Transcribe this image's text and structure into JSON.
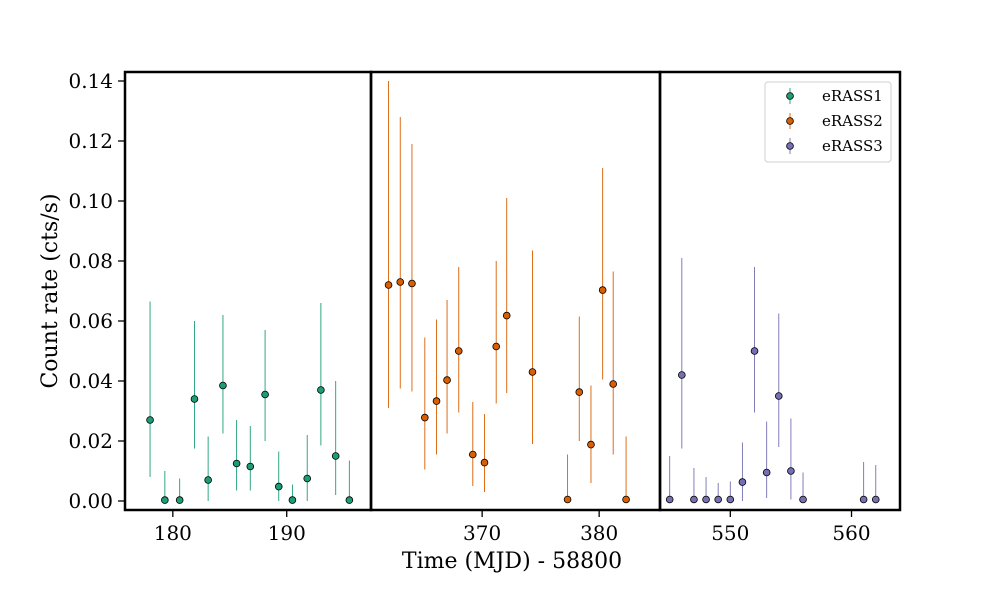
{
  "chart_data": {
    "type": "scatter",
    "xlabel": "Time (MJD) - 58800",
    "ylabel": "Count rate (cts/s)",
    "ylim": [
      -0.003,
      0.143
    ],
    "y_ticks": [
      0.0,
      0.02,
      0.04,
      0.06,
      0.08,
      0.1,
      0.12,
      0.14
    ],
    "y_tick_labels": [
      "0.00",
      "0.02",
      "0.04",
      "0.06",
      "0.08",
      "0.10",
      "0.12",
      "0.14"
    ],
    "legend_position": "top-right",
    "grid": false,
    "panels": [
      {
        "xlim": [
          175.8,
          197.4
        ],
        "x_ticks": [
          180,
          190
        ],
        "x_tick_labels": [
          "180",
          "190"
        ]
      },
      {
        "xlim": [
          360.5,
          385.2
        ],
        "x_ticks": [
          370,
          380
        ],
        "x_tick_labels": [
          "370",
          "380"
        ]
      },
      {
        "xlim": [
          544.2,
          564.0
        ],
        "x_ticks": [
          550,
          560
        ],
        "x_tick_labels": [
          "550",
          "560"
        ]
      }
    ],
    "series": [
      {
        "name": "eRASS1",
        "panel": 0,
        "color": "#1b9e77",
        "points": [
          {
            "x": 178.0,
            "y": 0.027,
            "lo": 0.008,
            "hi": 0.0665
          },
          {
            "x": 179.3,
            "y": 0.0003,
            "lo": 0.0,
            "hi": 0.01
          },
          {
            "x": 180.6,
            "y": 0.0003,
            "lo": 0.0,
            "hi": 0.0075
          },
          {
            "x": 181.9,
            "y": 0.034,
            "lo": 0.0175,
            "hi": 0.06
          },
          {
            "x": 183.1,
            "y": 0.007,
            "lo": 0.0,
            "hi": 0.0215
          },
          {
            "x": 184.4,
            "y": 0.0385,
            "lo": 0.0225,
            "hi": 0.062
          },
          {
            "x": 185.6,
            "y": 0.0125,
            "lo": 0.0035,
            "hi": 0.027
          },
          {
            "x": 186.8,
            "y": 0.0115,
            "lo": 0.0035,
            "hi": 0.025
          },
          {
            "x": 188.1,
            "y": 0.0355,
            "lo": 0.02,
            "hi": 0.057
          },
          {
            "x": 189.3,
            "y": 0.0048,
            "lo": 0.0,
            "hi": 0.0165
          },
          {
            "x": 190.5,
            "y": 0.0003,
            "lo": 0.0,
            "hi": 0.0055
          },
          {
            "x": 191.8,
            "y": 0.0075,
            "lo": 0.0,
            "hi": 0.022
          },
          {
            "x": 193.0,
            "y": 0.037,
            "lo": 0.0185,
            "hi": 0.066
          },
          {
            "x": 194.3,
            "y": 0.015,
            "lo": 0.002,
            "hi": 0.04
          },
          {
            "x": 195.5,
            "y": 0.0003,
            "lo": 0.0,
            "hi": 0.0135
          }
        ]
      },
      {
        "name": "eRASS2",
        "panel": 1,
        "color": "#d95f02",
        "points": [
          {
            "x": 362.0,
            "y": 0.072,
            "lo": 0.031,
            "hi": 0.14
          },
          {
            "x": 363.0,
            "y": 0.073,
            "lo": 0.0375,
            "hi": 0.128
          },
          {
            "x": 364.0,
            "y": 0.0725,
            "lo": 0.0365,
            "hi": 0.119
          },
          {
            "x": 365.1,
            "y": 0.0278,
            "lo": 0.0105,
            "hi": 0.0545
          },
          {
            "x": 366.1,
            "y": 0.0333,
            "lo": 0.0155,
            "hi": 0.0605
          },
          {
            "x": 367.0,
            "y": 0.0403,
            "lo": 0.0225,
            "hi": 0.067
          },
          {
            "x": 368.0,
            "y": 0.05,
            "lo": 0.0295,
            "hi": 0.078
          },
          {
            "x": 369.2,
            "y": 0.0155,
            "lo": 0.005,
            "hi": 0.033
          },
          {
            "x": 370.2,
            "y": 0.0128,
            "lo": 0.003,
            "hi": 0.029
          },
          {
            "x": 371.2,
            "y": 0.0515,
            "lo": 0.0325,
            "hi": 0.08
          },
          {
            "x": 372.1,
            "y": 0.0618,
            "lo": 0.036,
            "hi": 0.101
          },
          {
            "x": 374.3,
            "y": 0.043,
            "lo": 0.019,
            "hi": 0.0835
          },
          {
            "x": 377.3,
            "y": 0.0005,
            "lo": 0.0,
            "hi": 0.0155
          },
          {
            "x": 378.3,
            "y": 0.0363,
            "lo": 0.02,
            "hi": 0.0615
          },
          {
            "x": 379.3,
            "y": 0.0188,
            "lo": 0.006,
            "hi": 0.0385
          },
          {
            "x": 380.3,
            "y": 0.0703,
            "lo": 0.0405,
            "hi": 0.111
          },
          {
            "x": 381.2,
            "y": 0.039,
            "lo": 0.0155,
            "hi": 0.0765
          },
          {
            "x": 382.3,
            "y": 0.0005,
            "lo": 0.0,
            "hi": 0.0215
          }
        ]
      },
      {
        "name": "eRASS3",
        "panel": 2,
        "color": "#7570b3",
        "points": [
          {
            "x": 545.0,
            "y": 0.0005,
            "lo": 0.0,
            "hi": 0.015
          },
          {
            "x": 546.0,
            "y": 0.042,
            "lo": 0.0175,
            "hi": 0.081
          },
          {
            "x": 547.0,
            "y": 0.0005,
            "lo": 0.0,
            "hi": 0.011
          },
          {
            "x": 548.0,
            "y": 0.0005,
            "lo": 0.0,
            "hi": 0.008
          },
          {
            "x": 549.0,
            "y": 0.0005,
            "lo": 0.0,
            "hi": 0.006
          },
          {
            "x": 550.0,
            "y": 0.0005,
            "lo": 0.0,
            "hi": 0.0065
          },
          {
            "x": 551.0,
            "y": 0.0063,
            "lo": 0.0,
            "hi": 0.0195
          },
          {
            "x": 552.0,
            "y": 0.05,
            "lo": 0.0295,
            "hi": 0.078
          },
          {
            "x": 553.0,
            "y": 0.0095,
            "lo": 0.001,
            "hi": 0.0265
          },
          {
            "x": 554.0,
            "y": 0.035,
            "lo": 0.018,
            "hi": 0.0625
          },
          {
            "x": 555.0,
            "y": 0.01,
            "lo": 0.0005,
            "hi": 0.0275
          },
          {
            "x": 556.0,
            "y": 0.0005,
            "lo": 0.0,
            "hi": 0.0095
          },
          {
            "x": 561.0,
            "y": 0.0005,
            "lo": 0.0,
            "hi": 0.013
          },
          {
            "x": 562.0,
            "y": 0.0005,
            "lo": 0.0,
            "hi": 0.012
          }
        ]
      }
    ]
  }
}
